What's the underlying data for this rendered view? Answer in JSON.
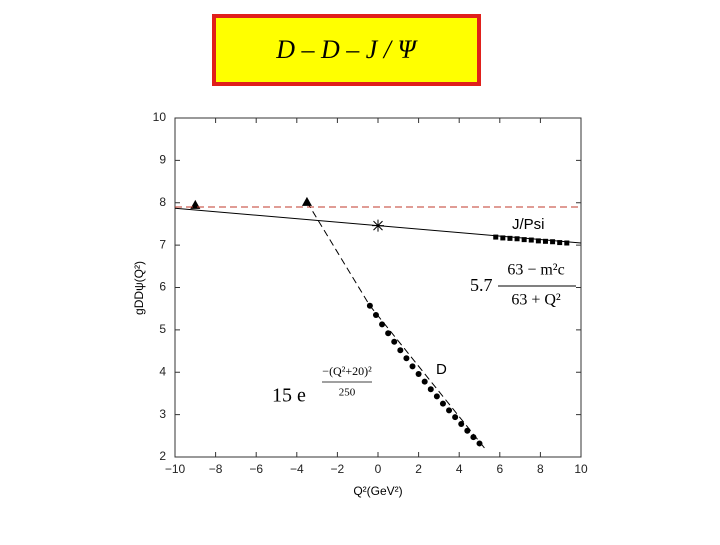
{
  "chart_data": {
    "type": "scatter",
    "title": "D – D – J / Ψ",
    "x_label": "Q²(GeV²)",
    "y_label": "gDDψ(Q²)",
    "xlim": [
      -10,
      10
    ],
    "xticks": [
      {
        "value": -10,
        "label": "−10"
      },
      {
        "value": -8,
        "label": "−8"
      },
      {
        "value": -6,
        "label": "−6"
      },
      {
        "value": -4,
        "label": "−4"
      },
      {
        "value": -2,
        "label": "−2"
      },
      0,
      2,
      4,
      6,
      8,
      10
    ],
    "ylim": [
      2,
      10
    ],
    "yticks": [
      2,
      3,
      4,
      5,
      6,
      7,
      8,
      9,
      10
    ],
    "annotations": [
      "J/Psi",
      "D"
    ],
    "formula_jpsi": {
      "coefficient": "5.7",
      "numerator": "63 − m²c",
      "denominator": "63 + Q²"
    },
    "formula_d": {
      "coefficient": "15 e",
      "exponent_numerator": "−(Q²+20)²",
      "exponent_denominator": "250"
    },
    "series": [
      {
        "marker": "triangle",
        "color": "#000000",
        "x": [
          -9.0,
          -3.5
        ],
        "values": [
          7.95,
          8.02
        ]
      },
      {
        "marker": "star",
        "color": "#000000",
        "x": [
          0
        ],
        "values": [
          7.46
        ]
      },
      {
        "marker": "square",
        "color": "#000000",
        "x": [
          5.8,
          6.15,
          6.5,
          6.85,
          7.2,
          7.55,
          7.9,
          8.25,
          8.6,
          8.95,
          9.3
        ],
        "values": [
          7.19,
          7.17,
          7.16,
          7.15,
          7.13,
          7.12,
          7.1,
          7.09,
          7.08,
          7.06,
          7.05
        ]
      },
      {
        "marker": "circle",
        "color": "#000000",
        "x": [
          -0.4,
          -0.1,
          0.2,
          0.5,
          0.8,
          1.1,
          1.4,
          1.7,
          2.0,
          2.3,
          2.6,
          2.9,
          3.2,
          3.5,
          3.8,
          4.1,
          4.4,
          4.7,
          5.0
        ],
        "values": [
          5.57,
          5.35,
          5.13,
          4.92,
          4.72,
          4.52,
          4.33,
          4.14,
          3.96,
          3.78,
          3.6,
          3.43,
          3.26,
          3.1,
          2.94,
          2.78,
          2.62,
          2.47,
          2.32
        ]
      },
      {
        "line": "solid",
        "color": "#000000",
        "x": [
          -10,
          10
        ],
        "values": [
          7.87,
          7.05
        ]
      },
      {
        "line": "dashed",
        "color": "#000000",
        "x": [
          -3.5,
          -0.4,
          5.3
        ],
        "values": [
          8.02,
          5.57,
          2.18
        ]
      },
      {
        "line": "dashed",
        "color": "#c0392b",
        "x": [
          -10,
          10
        ],
        "values": [
          7.9,
          7.9
        ]
      }
    ]
  }
}
